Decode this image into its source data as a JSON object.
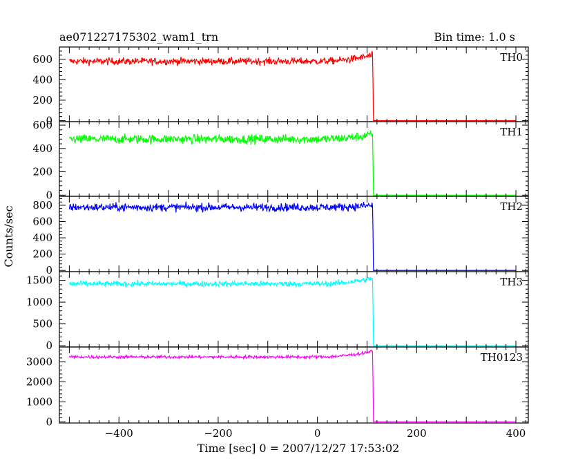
{
  "chart_data": {
    "type": "line",
    "title": "ae071227175302_wam1_trn",
    "subtitle": "Bin time: 1.0 s",
    "xlabel": "Time [sec] 0 = 2007/12/27 17:53:02",
    "ylabel": "Counts/sec",
    "xlim": [
      -520,
      425
    ],
    "xticks": [
      -400,
      -200,
      0,
      200,
      400
    ],
    "xtick_labels": [
      "−400",
      "−200",
      "0",
      "200",
      "400"
    ],
    "step_time": 113,
    "panels": [
      {
        "name": "TH0",
        "color": "#ff0000",
        "ylim": [
          -10,
          720
        ],
        "yticks": [
          0,
          200,
          400,
          600
        ],
        "ytick_labels": [
          "0",
          "200",
          "400",
          "600"
        ],
        "level_before": 580,
        "level_before_end": 640,
        "noise": 25,
        "level_after": 0
      },
      {
        "name": "TH1",
        "color": "#00ff00",
        "ylim": [
          -10,
          630
        ],
        "yticks": [
          0,
          200,
          400,
          600
        ],
        "ytick_labels": [
          "0",
          "200",
          "400",
          "600"
        ],
        "level_before": 480,
        "level_before_end": 520,
        "noise": 28,
        "level_after": 0
      },
      {
        "name": "TH2",
        "color": "#0000ff",
        "ylim": [
          -15,
          910
        ],
        "yticks": [
          0,
          200,
          400,
          600,
          800
        ],
        "ytick_labels": [
          "0",
          "200",
          "400",
          "600",
          "800"
        ],
        "level_before": 775,
        "level_before_end": 800,
        "noise": 35,
        "level_after": 0
      },
      {
        "name": "TH3",
        "color": "#00ffff",
        "ylim": [
          -30,
          1700
        ],
        "yticks": [
          0,
          500,
          1000,
          1500
        ],
        "ytick_labels": [
          "0",
          "500",
          "1000",
          "1500"
        ],
        "level_before": 1420,
        "level_before_end": 1550,
        "noise": 45,
        "level_after": 0
      },
      {
        "name": "TH0123",
        "color": "#ff00ff",
        "ylim": [
          -60,
          3750
        ],
        "yticks": [
          0,
          1000,
          2000,
          3000
        ],
        "ytick_labels": [
          "0",
          "1000",
          "2000",
          "3000"
        ],
        "level_before": 3250,
        "level_before_end": 3550,
        "noise": 55,
        "level_after": 0
      }
    ],
    "x_start": -500,
    "x_end": 400,
    "grid": false
  }
}
